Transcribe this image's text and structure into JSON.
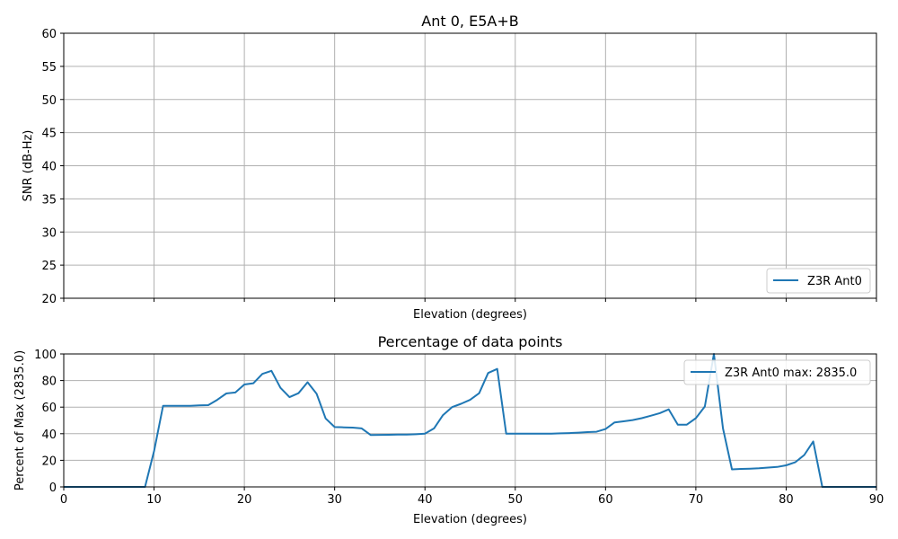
{
  "chart_data": [
    {
      "type": "line",
      "title": "Ant 0, E5A+B",
      "xlabel": "Elevation (degrees)",
      "ylabel": "SNR (dB-Hz)",
      "xlim": [
        0,
        90
      ],
      "ylim": [
        20,
        60
      ],
      "yticks": [
        "20",
        "25",
        "30",
        "35",
        "40",
        "45",
        "50",
        "55",
        "60"
      ],
      "xticks": [
        0,
        10,
        20,
        30,
        40,
        50,
        60,
        70,
        80,
        90
      ],
      "grid": true,
      "legend_position": "lower-right",
      "series": [
        {
          "name": "Z3R Ant0",
          "color": "#1f77b4",
          "x": [],
          "y": []
        }
      ]
    },
    {
      "type": "line",
      "title": "Percentage of data points",
      "xlabel": "Elevation (degrees)",
      "ylabel": "Percent of Max (2835.0)",
      "xlim": [
        0,
        90
      ],
      "ylim": [
        0,
        100
      ],
      "xticks": [
        "0",
        "10",
        "20",
        "30",
        "40",
        "50",
        "60",
        "70",
        "80",
        "90"
      ],
      "yticks": [
        "0",
        "20",
        "40",
        "60",
        "80",
        "100"
      ],
      "grid": true,
      "legend_position": "upper-right",
      "series": [
        {
          "name": "Z3R Ant0 max: 2835.0",
          "color": "#1f77b4",
          "x": [
            0,
            1,
            2,
            3,
            4,
            5,
            6,
            7,
            8,
            9,
            10,
            11,
            12,
            13,
            14,
            15,
            16,
            17,
            18,
            19,
            20,
            21,
            22,
            23,
            24,
            25,
            26,
            27,
            28,
            29,
            30,
            31,
            32,
            33,
            34,
            35,
            36,
            37,
            38,
            39,
            40,
            41,
            42,
            43,
            44,
            45,
            46,
            47,
            48,
            49,
            50,
            51,
            52,
            53,
            54,
            55,
            56,
            57,
            58,
            59,
            60,
            61,
            62,
            63,
            64,
            65,
            66,
            67,
            68,
            69,
            70,
            71,
            72,
            73,
            74,
            75,
            76,
            77,
            78,
            79,
            80,
            81,
            82,
            83,
            84,
            85,
            86,
            87,
            88,
            89,
            90
          ],
          "y": [
            0,
            0,
            0,
            0,
            0,
            0,
            0,
            0,
            0,
            0,
            27,
            61,
            61,
            61,
            61,
            61.3,
            61.5,
            65.5,
            70.3,
            71,
            77,
            78,
            85,
            87.3,
            74.5,
            67.5,
            70.5,
            78.7,
            70,
            51.5,
            45,
            44.8,
            44.6,
            44,
            39,
            39.1,
            39.2,
            39.3,
            39.3,
            39.6,
            40,
            44,
            54,
            60,
            62.5,
            65.5,
            70.5,
            85.7,
            88.7,
            40,
            40,
            40,
            40,
            40,
            40,
            40.3,
            40.5,
            40.8,
            41.2,
            41.5,
            43.5,
            48.5,
            49.3,
            50.3,
            51.7,
            53.5,
            55.5,
            58.3,
            46.8,
            46.8,
            51.7,
            60.5,
            100,
            44,
            13.2,
            13.5,
            13.7,
            14,
            14.5,
            15,
            16.2,
            18.5,
            24,
            34.2,
            0,
            0,
            0,
            0,
            0,
            0,
            0
          ]
        }
      ]
    }
  ]
}
